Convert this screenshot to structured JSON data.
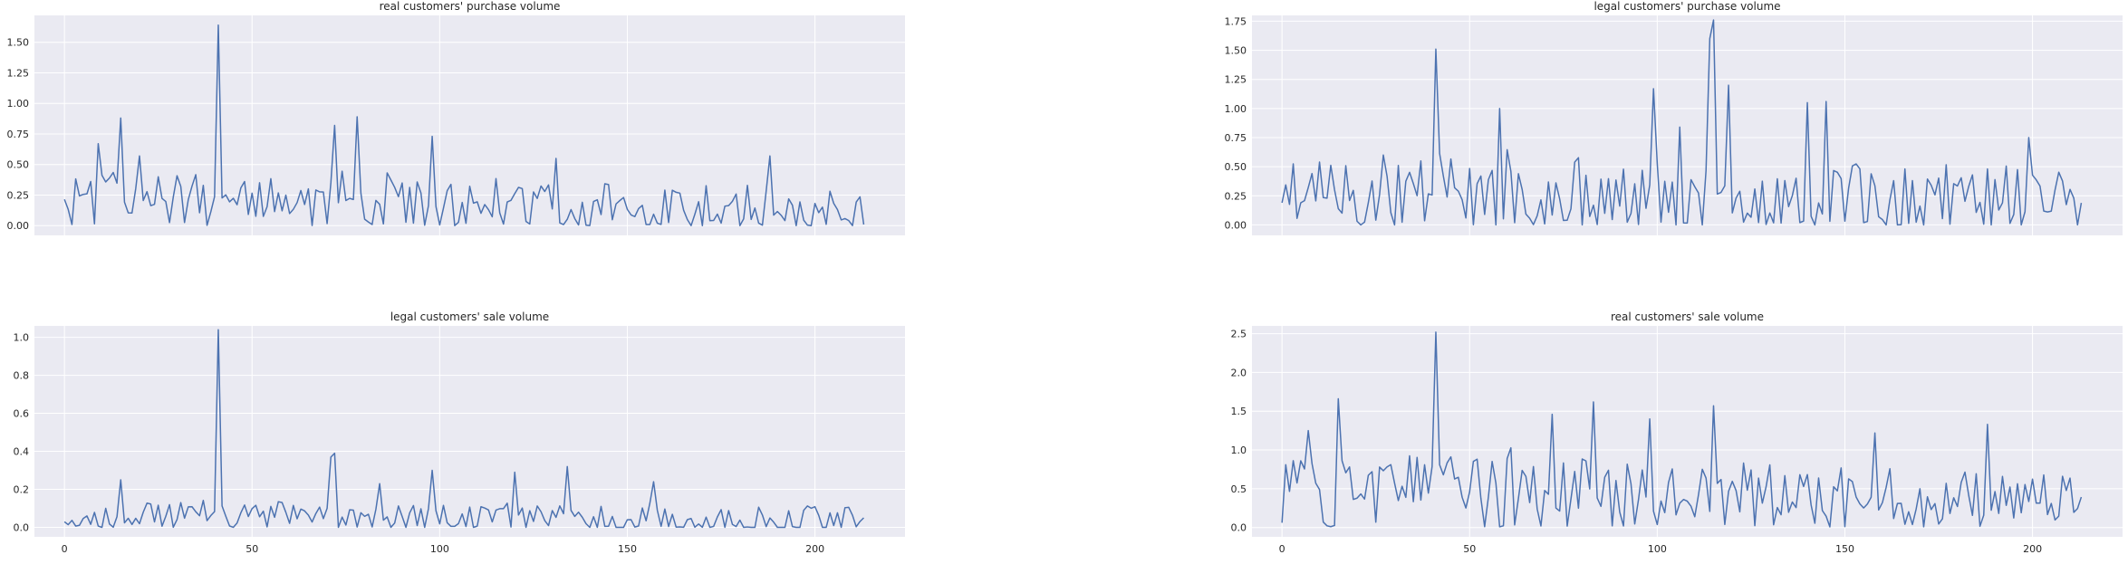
{
  "chart_data": [
    {
      "type": "line",
      "title": "real customers' purchase volume",
      "xlim": [
        -8,
        224
      ],
      "ylim": [
        -0.08,
        1.72
      ],
      "yticks": [
        0.0,
        0.25,
        0.5,
        0.75,
        1.0,
        1.25,
        1.5
      ],
      "ytick_labels": [
        "0.00",
        "0.25",
        "0.50",
        "0.75",
        "1.00",
        "1.25",
        "1.50"
      ],
      "xticks": [],
      "xtick_labels": [],
      "grid": true,
      "line_color": "#4c72b0",
      "seed": 11,
      "base_level": 0.28,
      "noise": 0.22,
      "trend_end": 0.08,
      "min_value": 0.0,
      "spikes": [
        [
          41,
          1.64
        ],
        [
          15,
          0.88
        ],
        [
          78,
          0.89
        ],
        [
          72,
          0.82
        ],
        [
          98,
          0.73
        ],
        [
          131,
          0.55
        ],
        [
          188,
          0.57
        ],
        [
          9,
          0.67
        ],
        [
          20,
          0.57
        ]
      ]
    },
    {
      "type": "line",
      "title": "legal customers' purchase volume",
      "xlim": [
        -8,
        224
      ],
      "ylim": [
        -0.09,
        1.8
      ],
      "yticks": [
        0.0,
        0.25,
        0.5,
        0.75,
        1.0,
        1.25,
        1.5,
        1.75
      ],
      "ytick_labels": [
        "0.00",
        "0.25",
        "0.50",
        "0.75",
        "1.00",
        "1.25",
        "1.50",
        "1.75"
      ],
      "xticks": [],
      "xtick_labels": [],
      "grid": true,
      "line_color": "#4c72b0",
      "seed": 23,
      "base_level": 0.3,
      "noise": 0.36,
      "trend_end": 0.18,
      "min_value": 0.0,
      "spikes": [
        [
          115,
          1.76
        ],
        [
          114,
          1.6
        ],
        [
          41,
          1.51
        ],
        [
          119,
          1.2
        ],
        [
          99,
          1.17
        ],
        [
          140,
          1.05
        ],
        [
          145,
          1.06
        ],
        [
          58,
          1.0
        ],
        [
          106,
          0.84
        ],
        [
          199,
          0.75
        ]
      ]
    },
    {
      "type": "line",
      "title": "legal customers' sale volume",
      "xlim": [
        -8,
        224
      ],
      "ylim": [
        -0.05,
        1.06
      ],
      "yticks": [
        0.0,
        0.2,
        0.4,
        0.6,
        0.8,
        1.0
      ],
      "ytick_labels": [
        "0.0",
        "0.2",
        "0.4",
        "0.6",
        "0.8",
        "1.0"
      ],
      "xticks": [
        0,
        50,
        100,
        150,
        200
      ],
      "xtick_labels": [
        "0",
        "50",
        "100",
        "150",
        "200"
      ],
      "grid": true,
      "line_color": "#4c72b0",
      "seed": 37,
      "base_level": 0.06,
      "noise": 0.09,
      "trend_end": 0.04,
      "min_value": 0.0,
      "spikes": [
        [
          41,
          1.04
        ],
        [
          72,
          0.39
        ],
        [
          71,
          0.37
        ],
        [
          134,
          0.32
        ],
        [
          98,
          0.3
        ],
        [
          15,
          0.25
        ],
        [
          157,
          0.24
        ],
        [
          120,
          0.29
        ],
        [
          84,
          0.23
        ]
      ]
    },
    {
      "type": "line",
      "title": "real customers' sale volume",
      "xlim": [
        -8,
        224
      ],
      "ylim": [
        -0.12,
        2.6
      ],
      "yticks": [
        0.0,
        0.5,
        1.0,
        1.5,
        2.0,
        2.5
      ],
      "ytick_labels": [
        "0.0",
        "0.5",
        "1.0",
        "1.5",
        "2.0",
        "2.5"
      ],
      "xticks": [
        0,
        50,
        100,
        150,
        200
      ],
      "xtick_labels": [
        "0",
        "50",
        "100",
        "150",
        "200"
      ],
      "grid": true,
      "line_color": "#4c72b0",
      "seed": 53,
      "base_level": 0.65,
      "noise": 0.45,
      "trend_end": 0.3,
      "min_value": 0.0,
      "spikes": [
        [
          41,
          2.52
        ],
        [
          15,
          1.66
        ],
        [
          83,
          1.62
        ],
        [
          115,
          1.57
        ],
        [
          72,
          1.46
        ],
        [
          98,
          1.4
        ],
        [
          158,
          1.22
        ],
        [
          188,
          1.33
        ],
        [
          7,
          1.25
        ]
      ]
    }
  ]
}
